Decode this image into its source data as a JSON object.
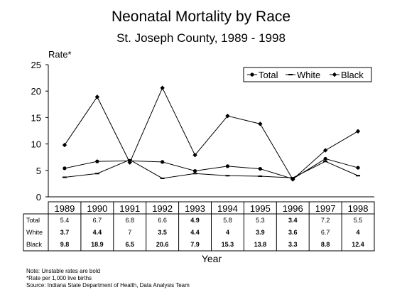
{
  "chart_data": {
    "type": "line",
    "title": "Neonatal Mortality by Race",
    "subtitle": "St. Joseph County, 1989 - 1998",
    "ylabel": "Rate*",
    "xlabel": "Year",
    "ylim": [
      0,
      25
    ],
    "yticks": [
      "0",
      "5",
      "10",
      "15",
      "20",
      "25"
    ],
    "grid": false,
    "legend_position": "top-right",
    "categories": [
      "1989",
      "1990",
      "1991",
      "1992",
      "1993",
      "1994",
      "1995",
      "1996",
      "1997",
      "1998"
    ],
    "series": [
      {
        "name": "Total",
        "marker": "circle",
        "values": [
          5.4,
          6.7,
          6.8,
          6.6,
          4.9,
          5.8,
          5.3,
          3.4,
          7.2,
          5.5
        ],
        "labels": [
          "5.4",
          "6.7",
          "6.8",
          "6.6",
          "4.9",
          "5.8",
          "5.3",
          "3.4",
          "7.2",
          "5.5"
        ],
        "bold": [
          false,
          false,
          false,
          false,
          true,
          false,
          false,
          true,
          false,
          false
        ]
      },
      {
        "name": "White",
        "marker": "dash",
        "values": [
          3.7,
          4.4,
          7,
          3.5,
          4.4,
          4,
          3.9,
          3.6,
          6.7,
          4
        ],
        "labels": [
          "3.7",
          "4.4",
          "7",
          "3.5",
          "4.4",
          "4",
          "3.9",
          "3.6",
          "6.7",
          "4"
        ],
        "bold": [
          true,
          true,
          false,
          true,
          true,
          true,
          true,
          true,
          false,
          true
        ]
      },
      {
        "name": "Black",
        "marker": "diamond",
        "values": [
          9.8,
          18.9,
          6.5,
          20.6,
          7.9,
          15.3,
          13.8,
          3.3,
          8.8,
          12.4
        ],
        "labels": [
          "9.8",
          "18.9",
          "6.5",
          "20.6",
          "7.9",
          "15.3",
          "13.8",
          "3.3",
          "8.8",
          "12.4"
        ],
        "bold": [
          true,
          true,
          true,
          true,
          true,
          true,
          true,
          true,
          true,
          true
        ]
      }
    ]
  },
  "notes": [
    "Note:  Unstable rates are bold",
    "*Rate per 1,000 live births",
    "Source:  Indiana State Department of Health, Data Analysis Team"
  ],
  "colors": {
    "line": "#000000",
    "background": "#ffffff"
  }
}
